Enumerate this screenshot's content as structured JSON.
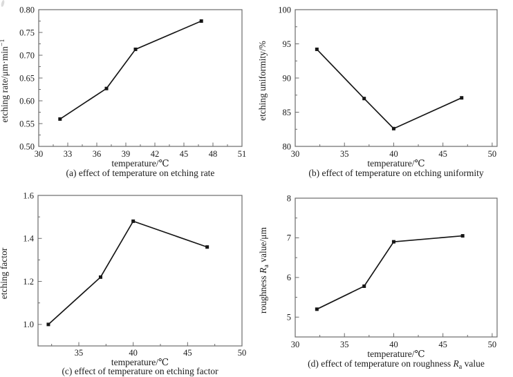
{
  "page": {
    "background": "#ffffff"
  },
  "colors": {
    "frame": "#6a6a6a",
    "line": "#161616",
    "marker": "#161616",
    "text": "#1a1a1a"
  },
  "chart_data": [
    {
      "id": "a",
      "type": "line",
      "caption": [
        {
          "t": "(a) effect of temperature on etching rate"
        }
      ],
      "xlabel": [
        {
          "t": "temperature/℃"
        }
      ],
      "ylabel": [
        {
          "t": "etching rate/μm·min"
        },
        {
          "t": "−1",
          "style": "sup"
        }
      ],
      "x": [
        32.2,
        37,
        40,
        46.8
      ],
      "y": [
        0.56,
        0.627,
        0.713,
        0.775
      ],
      "xlim": [
        30,
        51
      ],
      "ylim": [
        0.5,
        0.8
      ],
      "xticks": [
        30,
        33,
        36,
        39,
        42,
        45,
        48,
        51
      ],
      "xtick_labels": [
        "30",
        "33",
        "36",
        "39",
        "42",
        "45",
        "48",
        "51"
      ],
      "yticks": [
        0.5,
        0.55,
        0.6,
        0.65,
        0.7,
        0.75,
        0.8
      ],
      "ytick_labels": [
        "0.50",
        "0.55",
        "0.60",
        "0.65",
        "0.70",
        "0.75",
        "0.80"
      ],
      "xminor": 1.5,
      "yminor": 0.025,
      "marker": "filled-square",
      "grid": false,
      "legend": "none"
    },
    {
      "id": "b",
      "type": "line",
      "caption": [
        {
          "t": "(b) effect of temperature on etching uniformity"
        }
      ],
      "xlabel": [
        {
          "t": "temperature/℃"
        }
      ],
      "ylabel": [
        {
          "t": "etching uniformity/%"
        }
      ],
      "x": [
        32.2,
        37,
        40,
        46.9
      ],
      "y": [
        94.2,
        87.0,
        82.6,
        87.1
      ],
      "xlim": [
        30,
        50.5
      ],
      "ylim": [
        80,
        100
      ],
      "xticks": [
        30,
        35,
        40,
        45,
        50
      ],
      "xtick_labels": [
        "30",
        "35",
        "40",
        "45",
        "50"
      ],
      "yticks": [
        80,
        85,
        90,
        95,
        100
      ],
      "ytick_labels": [
        "80",
        "85",
        "90",
        "95",
        "100"
      ],
      "xminor": 2.5,
      "yminor": 2.5,
      "marker": "filled-square",
      "grid": false,
      "legend": "none"
    },
    {
      "id": "c",
      "type": "line",
      "caption": [
        {
          "t": "(c) effect of temperature on etching factor"
        }
      ],
      "xlabel": [
        {
          "t": "temperature/℃"
        }
      ],
      "ylabel": [
        {
          "t": "etching factor"
        }
      ],
      "x": [
        32.2,
        37,
        40,
        46.8
      ],
      "y": [
        1.0,
        1.22,
        1.48,
        1.36
      ],
      "xlim": [
        31.25,
        50
      ],
      "ylim": [
        0.9,
        1.6
      ],
      "xticks": [
        35,
        40,
        45,
        50
      ],
      "xtick_labels": [
        "35",
        "40",
        "45",
        "50"
      ],
      "yticks": [
        1.0,
        1.2,
        1.4,
        1.6
      ],
      "ytick_labels": [
        "1.0",
        "1.2",
        "1.4",
        "1.6"
      ],
      "xminor": 2.5,
      "yminor": 0.1,
      "marker": "filled-square",
      "grid": false,
      "legend": "none"
    },
    {
      "id": "d",
      "type": "line",
      "caption": [
        {
          "t": "(d) effect of temperature on roughness "
        },
        {
          "t": "R",
          "style": "italic"
        },
        {
          "t": "a",
          "style": "sub"
        },
        {
          "t": " value"
        }
      ],
      "xlabel": [
        {
          "t": "temperature/℃"
        }
      ],
      "ylabel": [
        {
          "t": "roughness "
        },
        {
          "t": "R",
          "style": "italic"
        },
        {
          "t": "a",
          "style": "sub"
        },
        {
          "t": " value/μm"
        }
      ],
      "x": [
        32.2,
        37,
        40,
        47
      ],
      "y": [
        5.2,
        5.78,
        6.9,
        7.05
      ],
      "xlim": [
        30,
        50.5
      ],
      "ylim": [
        4.5,
        8
      ],
      "xticks": [
        30,
        35,
        40,
        45,
        50
      ],
      "xtick_labels": [
        "30",
        "35",
        "40",
        "45",
        "50"
      ],
      "yticks": [
        5,
        6,
        7,
        8
      ],
      "ytick_labels": [
        "5",
        "6",
        "7",
        "8"
      ],
      "xminor": 2.5,
      "yminor": 0.5,
      "marker": "filled-square",
      "grid": false,
      "legend": "none"
    }
  ]
}
